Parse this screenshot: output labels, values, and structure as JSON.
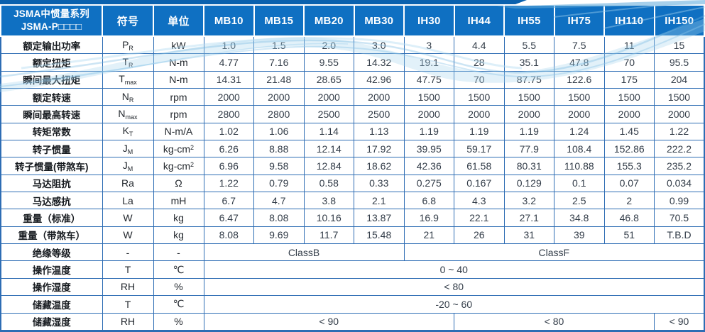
{
  "header": {
    "title_line1": "JSMA中惯量系列",
    "title_line2": "JSMA-P□□□□",
    "symbol_col": "符号",
    "unit_col": "单位",
    "models": [
      "MB10",
      "MB15",
      "MB20",
      "MB30",
      "IH30",
      "IH44",
      "IH55",
      "IH75",
      "IH110",
      "IH150"
    ]
  },
  "colors": {
    "header_bg": "#0f70c2",
    "top_strip": "#0a61ae",
    "grid_border": "#2e6db4",
    "swoosh": "#7fbfe6",
    "header_text": "#ffffff",
    "body_text": "#323c48"
  },
  "rows": [
    {
      "label": "额定输出功率",
      "sym": "P_R",
      "unit": "kW",
      "cells": [
        "1.0",
        "1.5",
        "2.0",
        "3.0",
        "3",
        "4.4",
        "5.5",
        "7.5",
        "11",
        "15"
      ]
    },
    {
      "label": "额定扭矩",
      "sym": "T_R",
      "unit": "N-m",
      "cells": [
        "4.77",
        "7.16",
        "9.55",
        "14.32",
        "19.1",
        "28",
        "35.1",
        "47.8",
        "70",
        "95.5"
      ]
    },
    {
      "label": "瞬间最大扭矩",
      "sym": "T_max",
      "unit": "N-m",
      "cells": [
        "14.31",
        "21.48",
        "28.65",
        "42.96",
        "47.75",
        "70",
        "87.75",
        "122.6",
        "175",
        "204"
      ]
    },
    {
      "label": "额定转速",
      "sym": "N_R",
      "unit": "rpm",
      "cells": [
        "2000",
        "2000",
        "2000",
        "2000",
        "1500",
        "1500",
        "1500",
        "1500",
        "1500",
        "1500"
      ]
    },
    {
      "label": "瞬间最高转速",
      "sym": "N_max",
      "unit": "rpm",
      "cells": [
        "2800",
        "2800",
        "2500",
        "2500",
        "2000",
        "2000",
        "2000",
        "2000",
        "2000",
        "2000"
      ]
    },
    {
      "label": "转矩常数",
      "sym": "K_T",
      "unit": "N-m/A",
      "cells": [
        "1.02",
        "1.06",
        "1.14",
        "1.13",
        "1.19",
        "1.19",
        "1.19",
        "1.24",
        "1.45",
        "1.22"
      ]
    },
    {
      "label": "转子惯量",
      "sym": "J_M",
      "unit": "kg-cm^2",
      "cells": [
        "6.26",
        "8.88",
        "12.14",
        "17.92",
        "39.95",
        "59.17",
        "77.9",
        "108.4",
        "152.86",
        "222.2"
      ]
    },
    {
      "label": "转子惯量(带煞车)",
      "sym": "J_M",
      "unit": "kg-cm^2",
      "cells": [
        "6.96",
        "9.58",
        "12.84",
        "18.62",
        "42.36",
        "61.58",
        "80.31",
        "110.88",
        "155.3",
        "235.2"
      ]
    },
    {
      "label": "马达阻抗",
      "sym": "Ra",
      "unit": "Ω",
      "cells": [
        "1.22",
        "0.79",
        "0.58",
        "0.33",
        "0.275",
        "0.167",
        "0.129",
        "0.1",
        "0.07",
        "0.034"
      ]
    },
    {
      "label": "马达感抗",
      "sym": "La",
      "unit": "mH",
      "cells": [
        "6.7",
        "4.7",
        "3.8",
        "2.1",
        "6.8",
        "4.3",
        "3.2",
        "2.5",
        "2",
        "0.99"
      ]
    },
    {
      "label": "重量（标准）",
      "sym": "W",
      "unit": "kg",
      "cells": [
        "6.47",
        "8.08",
        "10.16",
        "13.87",
        "16.9",
        "22.1",
        "27.1",
        "34.8",
        "46.8",
        "70.5"
      ]
    },
    {
      "label": "重量（带煞车）",
      "sym": "W",
      "unit": "kg",
      "cells": [
        "8.08",
        "9.69",
        "11.7",
        "15.48",
        "21",
        "26",
        "31",
        "39",
        "51",
        "T.B.D"
      ]
    },
    {
      "label": "绝缘等级",
      "sym": "-",
      "unit": "-",
      "spans": [
        {
          "text": "ClassB",
          "cols": 4
        },
        {
          "text": "ClassF",
          "cols": 6
        }
      ]
    },
    {
      "label": "操作温度",
      "sym": "T",
      "unit": "℃",
      "spans": [
        {
          "text": "0 ~ 40",
          "cols": 10
        }
      ]
    },
    {
      "label": "操作湿度",
      "sym": "RH",
      "unit": "%",
      "spans": [
        {
          "text": "< 80",
          "cols": 10
        }
      ]
    },
    {
      "label": "储藏温度",
      "sym": "T",
      "unit": "℃",
      "spans": [
        {
          "text": "-20 ~ 60",
          "cols": 10
        }
      ]
    },
    {
      "label": "储藏湿度",
      "sym": "RH",
      "unit": "%",
      "spans": [
        {
          "text": "< 90",
          "cols": 5
        },
        {
          "text": "< 80",
          "cols": 4
        },
        {
          "text": "< 90",
          "cols": 1
        }
      ]
    }
  ]
}
